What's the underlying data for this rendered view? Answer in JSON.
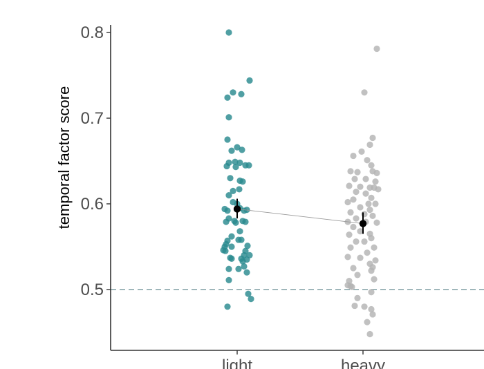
{
  "chart_data": {
    "type": "scatter",
    "title": "",
    "xlabel": "",
    "ylabel": "temporal factor score",
    "categories": [
      "light",
      "heavy"
    ],
    "ylim": [
      0.43,
      0.81
    ],
    "yticks": [
      0.5,
      0.6,
      0.7,
      0.8
    ],
    "grid": false,
    "reference_line": {
      "y": 0.5,
      "style": "dashed",
      "color": "#7f9ea3"
    },
    "colors": {
      "light": "#2a8a8f",
      "heavy": "#b3b3b3",
      "summary": "#000000",
      "connector": "#999999"
    },
    "series": [
      {
        "category": "light",
        "mean": 0.594,
        "ci": [
          0.583,
          0.606
        ],
        "points": [
          {
            "j": -0.12,
            "y": 0.8
          },
          {
            "j": 0.18,
            "y": 0.744
          },
          {
            "j": -0.06,
            "y": 0.73
          },
          {
            "j": 0.06,
            "y": 0.728
          },
          {
            "j": -0.14,
            "y": 0.724
          },
          {
            "j": -0.12,
            "y": 0.701
          },
          {
            "j": -0.14,
            "y": 0.675
          },
          {
            "j": 0.0,
            "y": 0.666
          },
          {
            "j": -0.08,
            "y": 0.662
          },
          {
            "j": 0.07,
            "y": 0.663
          },
          {
            "j": -0.12,
            "y": 0.648
          },
          {
            "j": -0.03,
            "y": 0.649
          },
          {
            "j": 0.04,
            "y": 0.648
          },
          {
            "j": 0.12,
            "y": 0.645
          },
          {
            "j": 0.17,
            "y": 0.645
          },
          {
            "j": -0.15,
            "y": 0.644
          },
          {
            "j": -0.02,
            "y": 0.643
          },
          {
            "j": -0.1,
            "y": 0.63
          },
          {
            "j": 0.04,
            "y": 0.627
          },
          {
            "j": 0.08,
            "y": 0.626
          },
          {
            "j": 0.03,
            "y": 0.617
          },
          {
            "j": -0.06,
            "y": 0.615
          },
          {
            "j": -0.12,
            "y": 0.61
          },
          {
            "j": -0.06,
            "y": 0.602
          },
          {
            "j": 0.0,
            "y": 0.6
          },
          {
            "j": -0.18,
            "y": 0.594
          },
          {
            "j": -0.14,
            "y": 0.592
          },
          {
            "j": 0.04,
            "y": 0.595
          },
          {
            "j": 0.1,
            "y": 0.592
          },
          {
            "j": 0.14,
            "y": 0.593
          },
          {
            "j": -0.12,
            "y": 0.583
          },
          {
            "j": -0.04,
            "y": 0.58
          },
          {
            "j": 0.08,
            "y": 0.58
          },
          {
            "j": -0.16,
            "y": 0.579
          },
          {
            "j": -0.02,
            "y": 0.578
          },
          {
            "j": 0.12,
            "y": 0.579
          },
          {
            "j": 0.04,
            "y": 0.568
          },
          {
            "j": -0.08,
            "y": 0.562
          },
          {
            "j": 0.02,
            "y": 0.558
          },
          {
            "j": 0.06,
            "y": 0.558
          },
          {
            "j": -0.14,
            "y": 0.557
          },
          {
            "j": -0.16,
            "y": 0.553
          },
          {
            "j": -0.18,
            "y": 0.55
          },
          {
            "j": -0.08,
            "y": 0.55
          },
          {
            "j": 0.15,
            "y": 0.551
          },
          {
            "j": -0.2,
            "y": 0.546
          },
          {
            "j": -0.17,
            "y": 0.545
          },
          {
            "j": 0.12,
            "y": 0.545
          },
          {
            "j": 0.18,
            "y": 0.54
          },
          {
            "j": 0.1,
            "y": 0.54
          },
          {
            "j": -0.1,
            "y": 0.537
          },
          {
            "j": -0.08,
            "y": 0.536
          },
          {
            "j": 0.06,
            "y": 0.536
          },
          {
            "j": 0.14,
            "y": 0.535
          },
          {
            "j": 0.08,
            "y": 0.533
          },
          {
            "j": -0.12,
            "y": 0.524
          },
          {
            "j": 0.02,
            "y": 0.524
          },
          {
            "j": 0.1,
            "y": 0.527
          },
          {
            "j": 0.14,
            "y": 0.52
          },
          {
            "j": -0.12,
            "y": 0.511
          },
          {
            "j": 0.16,
            "y": 0.495
          },
          {
            "j": 0.2,
            "y": 0.489
          },
          {
            "j": -0.14,
            "y": 0.48
          }
        ]
      },
      {
        "category": "heavy",
        "mean": 0.577,
        "ci": [
          0.565,
          0.59
        ],
        "points": [
          {
            "j": 0.2,
            "y": 0.781
          },
          {
            "j": 0.02,
            "y": 0.73
          },
          {
            "j": 0.14,
            "y": 0.677
          },
          {
            "j": 0.1,
            "y": 0.669
          },
          {
            "j": -0.02,
            "y": 0.661
          },
          {
            "j": -0.14,
            "y": 0.656
          },
          {
            "j": 0.06,
            "y": 0.651
          },
          {
            "j": 0.12,
            "y": 0.645
          },
          {
            "j": -0.18,
            "y": 0.638
          },
          {
            "j": -0.08,
            "y": 0.637
          },
          {
            "j": 0.14,
            "y": 0.638
          },
          {
            "j": 0.2,
            "y": 0.636
          },
          {
            "j": -0.12,
            "y": 0.629
          },
          {
            "j": 0.04,
            "y": 0.629
          },
          {
            "j": 0.18,
            "y": 0.626
          },
          {
            "j": -0.2,
            "y": 0.621
          },
          {
            "j": -0.04,
            "y": 0.62
          },
          {
            "j": 0.1,
            "y": 0.619
          },
          {
            "j": 0.16,
            "y": 0.619
          },
          {
            "j": 0.22,
            "y": 0.617
          },
          {
            "j": -0.1,
            "y": 0.614
          },
          {
            "j": 0.04,
            "y": 0.612
          },
          {
            "j": 0.12,
            "y": 0.607
          },
          {
            "j": -0.14,
            "y": 0.605
          },
          {
            "j": -0.22,
            "y": 0.602
          },
          {
            "j": 0.08,
            "y": 0.6
          },
          {
            "j": 0.18,
            "y": 0.6
          },
          {
            "j": -0.04,
            "y": 0.596
          },
          {
            "j": 0.1,
            "y": 0.593
          },
          {
            "j": -0.18,
            "y": 0.59
          },
          {
            "j": 0.02,
            "y": 0.588
          },
          {
            "j": 0.14,
            "y": 0.586
          },
          {
            "j": -0.1,
            "y": 0.583
          },
          {
            "j": -0.22,
            "y": 0.579
          },
          {
            "j": 0.04,
            "y": 0.579
          },
          {
            "j": 0.2,
            "y": 0.578
          },
          {
            "j": -0.14,
            "y": 0.573
          },
          {
            "j": -0.04,
            "y": 0.568
          },
          {
            "j": 0.1,
            "y": 0.565
          },
          {
            "j": -0.2,
            "y": 0.564
          },
          {
            "j": 0.12,
            "y": 0.56
          },
          {
            "j": -0.1,
            "y": 0.556
          },
          {
            "j": 0.02,
            "y": 0.556
          },
          {
            "j": -0.18,
            "y": 0.549
          },
          {
            "j": 0.16,
            "y": 0.549
          },
          {
            "j": 0.06,
            "y": 0.543
          },
          {
            "j": -0.22,
            "y": 0.538
          },
          {
            "j": -0.04,
            "y": 0.537
          },
          {
            "j": 0.18,
            "y": 0.534
          },
          {
            "j": 0.1,
            "y": 0.53
          },
          {
            "j": 0.14,
            "y": 0.526
          },
          {
            "j": -0.14,
            "y": 0.525
          },
          {
            "j": 0.12,
            "y": 0.522
          },
          {
            "j": -0.08,
            "y": 0.517
          },
          {
            "j": -0.2,
            "y": 0.51
          },
          {
            "j": 0.16,
            "y": 0.512
          },
          {
            "j": -0.22,
            "y": 0.505
          },
          {
            "j": -0.18,
            "y": 0.504
          },
          {
            "j": -0.16,
            "y": 0.503
          },
          {
            "j": 0.12,
            "y": 0.497
          },
          {
            "j": -0.08,
            "y": 0.49
          },
          {
            "j": -0.12,
            "y": 0.481
          },
          {
            "j": 0.02,
            "y": 0.48
          },
          {
            "j": 0.12,
            "y": 0.477
          },
          {
            "j": 0.14,
            "y": 0.471
          },
          {
            "j": 0.06,
            "y": 0.462
          },
          {
            "j": 0.1,
            "y": 0.448
          }
        ]
      }
    ]
  }
}
